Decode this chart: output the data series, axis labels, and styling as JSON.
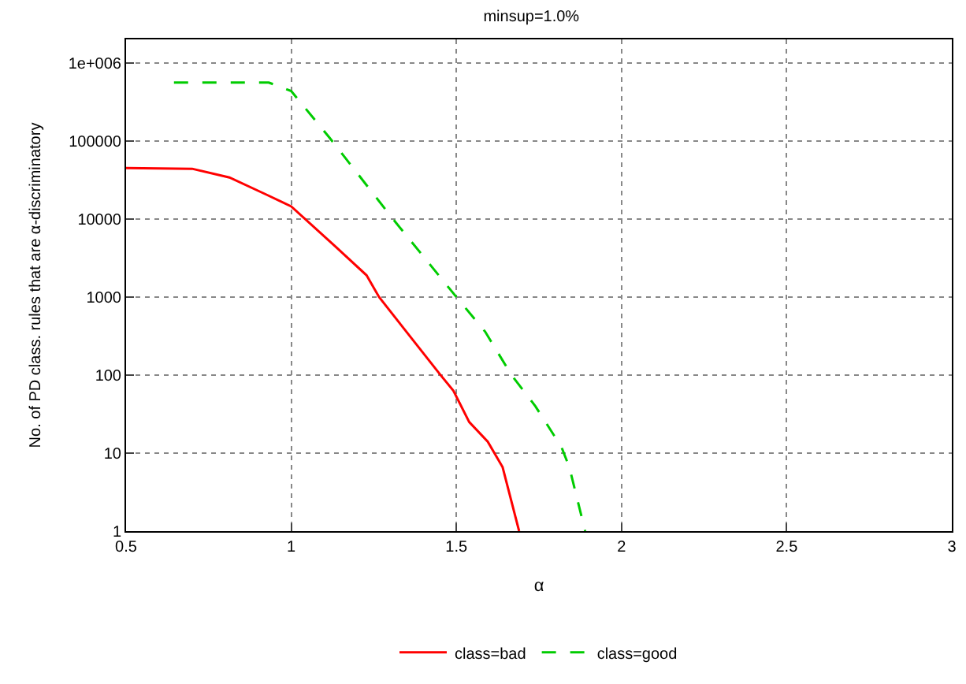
{
  "chart_data": {
    "type": "line",
    "title": "minsup=1.0%",
    "xlabel": "α",
    "ylabel": "No. of PD class. rules that are α-discriminatory",
    "log": "y",
    "xlim": [
      0.5,
      3
    ],
    "xticks": [
      0.5,
      1,
      1.5,
      2,
      2.5,
      3
    ],
    "ylim": [
      1,
      2000000
    ],
    "yticks": [
      1,
      10,
      100,
      1000,
      10000,
      100000,
      {
        "value": 1000000,
        "label": "1e+006"
      }
    ],
    "grid": true,
    "legend": "bottom",
    "marker": "none",
    "series": [
      {
        "name": "class=bad",
        "color": "#ff0000",
        "line_style": "solid",
        "x": [
          0.5,
          0.7,
          0.813,
          0.925,
          1.0,
          1.132,
          1.228,
          1.266,
          1.452,
          1.491,
          1.539,
          1.595,
          1.64,
          1.69
        ],
        "values": [
          45000,
          44000,
          34000,
          20500,
          14500,
          4500,
          1900,
          1000,
          100,
          63,
          25,
          14,
          6.6,
          1
        ]
      },
      {
        "name": "class=good",
        "color": "#00cc00",
        "line_style": "dashed",
        "x": [
          0.645,
          0.932,
          1.0,
          1.116,
          1.308,
          1.5,
          1.587,
          1.667,
          1.739,
          1.818,
          1.842,
          1.89
        ],
        "values": [
          560000,
          560000,
          435000,
          110000,
          10000,
          1000,
          360,
          100,
          40,
          12,
          6.6,
          1
        ]
      }
    ]
  }
}
